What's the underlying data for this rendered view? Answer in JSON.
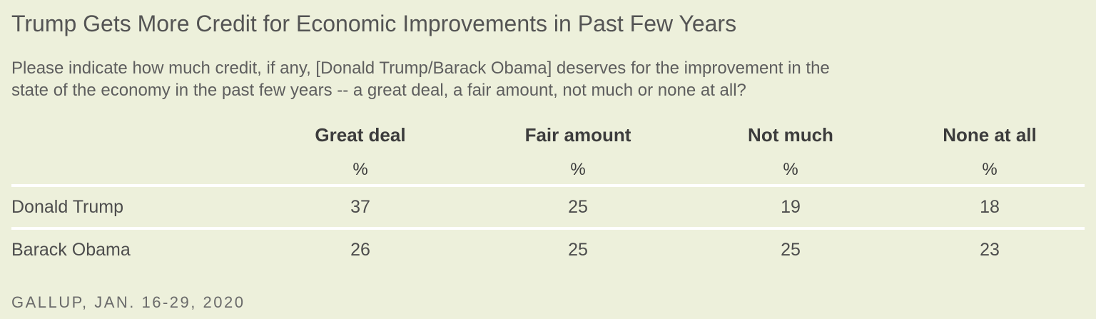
{
  "title": "Trump Gets More Credit for Economic Improvements in Past Few Years",
  "subtitle_line1": "Please indicate how much credit, if any, [Donald Trump/Barack Obama] deserves for the improvement in the",
  "subtitle_line2": "state of the economy in the past few years -- a great deal, a fair amount, not much or none at all?",
  "table": {
    "columns": [
      "Great deal",
      "Fair amount",
      "Not much",
      "None at all"
    ],
    "unit_symbol": "%",
    "rows": [
      {
        "label": "Donald Trump",
        "values": [
          "37",
          "25",
          "19",
          "18"
        ]
      },
      {
        "label": "Barack Obama",
        "values": [
          "26",
          "25",
          "25",
          "23"
        ]
      }
    ]
  },
  "source": "GALLUP, JAN. 16-29, 2020",
  "chart_data": {
    "type": "table",
    "title": "Trump Gets More Credit for Economic Improvements in Past Few Years",
    "question": "Please indicate how much credit, if any, [Donald Trump/Barack Obama] deserves for the improvement in the state of the economy in the past few years -- a great deal, a fair amount, not much or none at all?",
    "categories": [
      "Great deal",
      "Fair amount",
      "Not much",
      "None at all"
    ],
    "unit": "%",
    "series": [
      {
        "name": "Donald Trump",
        "values": [
          37,
          25,
          19,
          18
        ]
      },
      {
        "name": "Barack Obama",
        "values": [
          26,
          25,
          25,
          23
        ]
      }
    ],
    "source": "GALLUP, JAN. 16-29, 2020"
  },
  "colors": {
    "background": "#edf0db",
    "divider": "#ffffff",
    "title_text": "#545454",
    "subtitle_text": "#5e5e5e",
    "header_text": "#3c3c3c",
    "body_text": "#4d4d4d",
    "source_text": "#6a6a6a"
  }
}
